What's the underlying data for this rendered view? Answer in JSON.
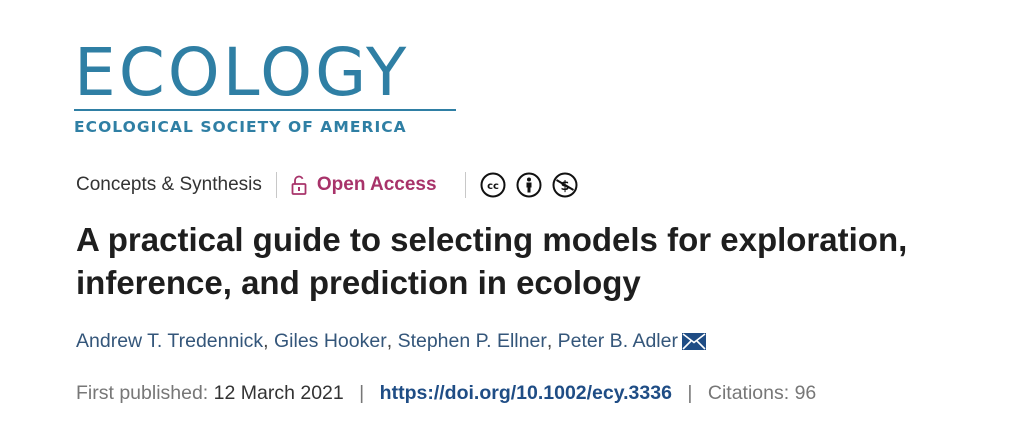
{
  "journal": {
    "logo_word": "ECOLOGY",
    "logo_sub": "ECOLOGICAL SOCIETY OF AMERICA",
    "brand_color": "#2f7fa4"
  },
  "article": {
    "type": "Concepts & Synthesis",
    "access": "Open Access",
    "access_color": "#a8336a",
    "license_icons": [
      "cc-icon",
      "by-attribution-icon",
      "non-commercial-icon"
    ],
    "title": "A practical guide to selecting models for exploration, inference, and prediction in ecology",
    "authors": [
      "Andrew T. Tredennick",
      "Giles Hooker",
      "Stephen P. Ellner",
      "Peter B. Adler"
    ],
    "first_published_label": "First published:",
    "first_published_date": "12 March 2021",
    "doi": "https://doi.org/10.1002/ecy.3336",
    "citations_label": "Citations:",
    "citations_count": "96"
  }
}
